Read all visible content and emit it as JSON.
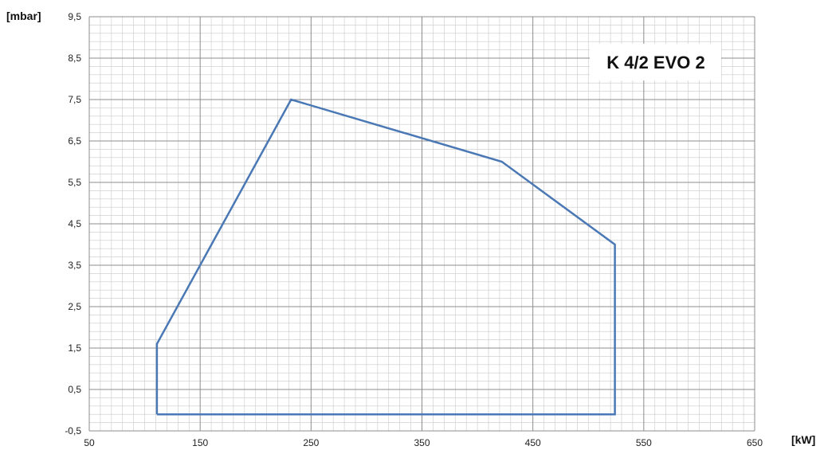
{
  "chart_data": {
    "type": "area",
    "title": "K 4/2 EVO 2",
    "xlabel": "[kW]",
    "ylabel": "[mbar]",
    "xlim": [
      50,
      650
    ],
    "ylim": [
      -0.5,
      9.5
    ],
    "x_ticks": [
      "50",
      "150",
      "250",
      "350",
      "450",
      "550",
      "650"
    ],
    "y_ticks": [
      "-0,5",
      "0,5",
      "1,5",
      "2,5",
      "3,5",
      "4,5",
      "5,5",
      "6,5",
      "7,5",
      "8,5",
      "9,5"
    ],
    "grid": true,
    "line_color": "#4a78b5",
    "series": [
      {
        "x": [
          111,
          111,
          232,
          422,
          524,
          524,
          111
        ],
        "y": [
          -0.1,
          1.6,
          7.5,
          6.0,
          4.0,
          -0.1,
          -0.1
        ]
      }
    ]
  }
}
